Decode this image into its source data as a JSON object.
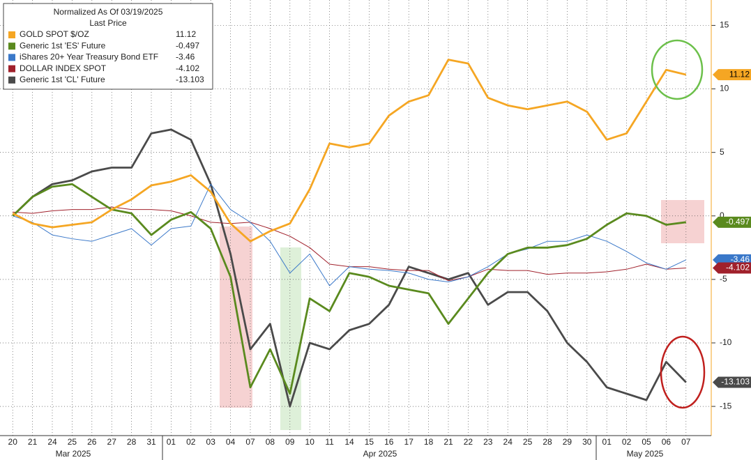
{
  "chart_data": {
    "type": "line",
    "legend_title": "Normalized As Of 03/19/2025",
    "legend_subtitle": "Last Price",
    "categories": [
      "20",
      "21",
      "24",
      "25",
      "26",
      "27",
      "28",
      "31",
      "01",
      "02",
      "03",
      "04",
      "07",
      "08",
      "09",
      "10",
      "11",
      "14",
      "15",
      "16",
      "17",
      "18",
      "21",
      "22",
      "23",
      "24",
      "25",
      "28",
      "29",
      "30",
      "01",
      "02",
      "05",
      "06",
      "07"
    ],
    "months": [
      "Mar 2025",
      "Apr 2025",
      "May 2025"
    ],
    "ylim": [
      -17.3,
      17
    ],
    "yticks": [
      15,
      10,
      5,
      0,
      -5,
      -10,
      -15
    ],
    "grid": true,
    "series": [
      {
        "name": "GOLD SPOT $/OZ",
        "color": "#f5a623",
        "values": [
          0.2,
          -0.6,
          -0.9,
          -0.7,
          -0.5,
          0.5,
          1.3,
          2.4,
          2.7,
          3.2,
          1.9,
          -0.6,
          -2.0,
          -1.2,
          -0.6,
          2.1,
          5.7,
          5.4,
          5.7,
          7.9,
          9.0,
          9.5,
          12.3,
          12.0,
          9.3,
          8.7,
          8.4,
          8.7,
          9.0,
          8.2,
          6.0,
          6.5,
          9.0,
          11.5,
          11.12
        ]
      },
      {
        "name": "Generic 1st 'ES' Future",
        "color": "#5a8a1e",
        "values": [
          0.0,
          1.5,
          2.3,
          2.5,
          1.5,
          0.5,
          0.2,
          -1.5,
          -0.3,
          0.3,
          -1.0,
          -4.8,
          -13.5,
          -10.5,
          -14.0,
          -6.5,
          -7.5,
          -4.5,
          -4.8,
          -5.5,
          -5.8,
          -6.1,
          -8.5,
          -6.5,
          -4.5,
          -3.0,
          -2.5,
          -2.5,
          -2.3,
          -1.8,
          -0.7,
          0.2,
          0.0,
          -0.7,
          -0.497
        ]
      },
      {
        "name": "iShares 20+ Year Treasury Bond ETF",
        "color": "#3a78c9",
        "values": [
          0.0,
          -0.5,
          -1.5,
          -1.8,
          -2.0,
          -1.5,
          -1.0,
          -2.3,
          -1.0,
          -0.8,
          2.5,
          0.5,
          -0.5,
          -2.0,
          -4.5,
          -3.0,
          -5.5,
          -4.0,
          -4.2,
          -4.3,
          -4.5,
          -5.0,
          -5.2,
          -4.8,
          -4.0,
          -3.0,
          -2.6,
          -2.0,
          -2.0,
          -1.5,
          -2.0,
          -2.8,
          -3.7,
          -4.2,
          -3.46
        ]
      },
      {
        "name": "DOLLAR INDEX SPOT",
        "color": "#a0202b",
        "values": [
          0.3,
          0.2,
          0.4,
          0.5,
          0.5,
          0.7,
          0.5,
          0.5,
          0.4,
          0.0,
          -0.5,
          -0.6,
          -0.5,
          -1.0,
          -1.6,
          -2.5,
          -3.8,
          -4.0,
          -4.0,
          -4.2,
          -4.3,
          -4.3,
          -5.1,
          -4.8,
          -4.2,
          -4.3,
          -4.3,
          -4.6,
          -4.5,
          -4.5,
          -4.4,
          -4.2,
          -3.8,
          -4.2,
          -4.102
        ]
      },
      {
        "name": "Generic 1st 'CL' Future",
        "color": "#4a4a4a",
        "values": [
          0.0,
          1.5,
          2.5,
          2.8,
          3.5,
          3.8,
          3.8,
          6.5,
          6.8,
          6.0,
          2.5,
          -3.0,
          -10.5,
          -8.5,
          -15.0,
          -10.0,
          -10.5,
          -9.0,
          -8.5,
          -7.0,
          -4.0,
          -4.5,
          -5.0,
          -4.5,
          -7.0,
          -6.0,
          -6.0,
          -7.5,
          -10.0,
          -11.5,
          -13.5,
          -14.0,
          -14.5,
          -11.5,
          -13.103
        ]
      }
    ]
  }
}
